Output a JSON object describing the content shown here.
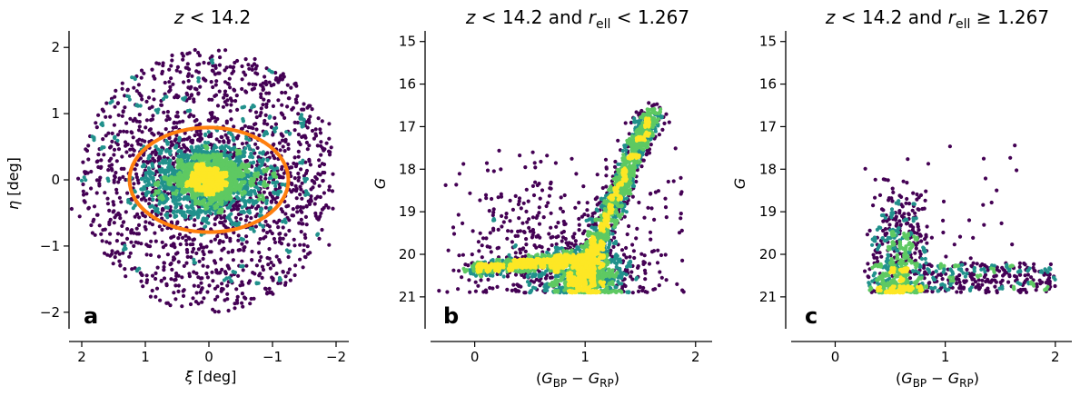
{
  "chart_data": [
    {
      "type": "scatter",
      "id": "a",
      "title": "z < 14.2",
      "panel_label": "a",
      "xlabel": "ξ [deg]",
      "ylabel": "η [deg]",
      "xlim": [
        2.2,
        -2.2
      ],
      "ylim": [
        -2.25,
        2.25
      ],
      "xticks": [
        2,
        1,
        0,
        -1,
        -2
      ],
      "xtick_labels": [
        "2",
        "1",
        "0",
        "−1",
        "−2"
      ],
      "yticks": [
        -2,
        -1,
        0,
        1,
        2
      ],
      "ytick_labels": [
        "−2",
        "−1",
        "0",
        "1",
        "2"
      ],
      "point_color": "#440154",
      "density_colors": [
        "#3b528b",
        "#21918c",
        "#5ec962",
        "#fde725"
      ],
      "uniform_disk": {
        "radius": 2.0,
        "n": 1500
      },
      "clusters": [
        {
          "cx": 0.0,
          "cy": 0.0,
          "sx": 0.6,
          "sy": 0.32,
          "n": 1500
        },
        {
          "cx": 0.0,
          "cy": 0.0,
          "sx": 0.25,
          "sy": 0.15,
          "n": 900
        }
      ],
      "ellipse": {
        "cx": 0.0,
        "cy": 0.0,
        "a": 1.25,
        "b": 0.79,
        "color": "#ff7f0e"
      }
    },
    {
      "type": "scatter",
      "id": "b",
      "title": "z < 14.2 and r_ell < 1.267",
      "panel_label": "b",
      "xlabel": "(G_BP − G_RP)",
      "ylabel": "G",
      "xlim": [
        -0.4,
        2.15
      ],
      "ylim": [
        21.75,
        14.75
      ],
      "xticks": [
        0,
        1,
        2
      ],
      "xtick_labels": [
        "0",
        "1",
        "2"
      ],
      "yticks": [
        15,
        16,
        17,
        18,
        19,
        20,
        21
      ],
      "ytick_labels": [
        "15",
        "16",
        "17",
        "18",
        "19",
        "20",
        "21"
      ],
      "point_color": "#440154",
      "density_colors": [
        "#3b528b",
        "#21918c",
        "#5ec962",
        "#fde725"
      ],
      "mag_cut": 20.9,
      "features": [
        {
          "kind": "line",
          "x0": 0.92,
          "y0": 20.85,
          "x1": 1.62,
          "y1": 16.6,
          "sx": 0.06,
          "n": 1400
        },
        {
          "kind": "line",
          "x0": -0.05,
          "y0": 20.35,
          "x1": 0.9,
          "y1": 20.1,
          "sx": 0.05,
          "n": 700
        },
        {
          "kind": "blob",
          "cx": 1.0,
          "cy": 20.5,
          "sx": 0.22,
          "sy": 0.35,
          "n": 900
        },
        {
          "kind": "blob",
          "cx": 0.7,
          "cy": 19.8,
          "sx": 0.4,
          "sy": 0.8,
          "n": 300
        },
        {
          "kind": "uniform",
          "x0": -0.2,
          "x1": 1.9,
          "y0": 17.5,
          "y1": 20.9,
          "n": 120
        }
      ]
    },
    {
      "type": "scatter",
      "id": "c",
      "title": "z < 14.2 and r_ell ≥ 1.267",
      "panel_label": "c",
      "xlabel": "(G_BP − G_RP)",
      "ylabel": "G",
      "xlim": [
        -0.4,
        2.15
      ],
      "ylim": [
        21.75,
        14.75
      ],
      "xticks": [
        0,
        1,
        2
      ],
      "xtick_labels": [
        "0",
        "1",
        "2"
      ],
      "yticks": [
        15,
        16,
        17,
        18,
        19,
        20,
        21
      ],
      "ytick_labels": [
        "15",
        "16",
        "17",
        "18",
        "19",
        "20",
        "21"
      ],
      "point_color": "#440154",
      "density_colors": [
        "#3b528b",
        "#21918c",
        "#5ec962",
        "#fde725"
      ],
      "mag_cut": 20.9,
      "features": [
        {
          "kind": "blob",
          "cx": 0.6,
          "cy": 20.0,
          "sx": 0.13,
          "sy": 0.8,
          "n": 520
        },
        {
          "kind": "uniform",
          "x0": 0.3,
          "x1": 2.0,
          "y0": 20.2,
          "y1": 20.9,
          "n": 420
        },
        {
          "kind": "blob",
          "cx": 0.65,
          "cy": 20.8,
          "sx": 0.15,
          "sy": 0.05,
          "n": 60
        },
        {
          "kind": "uniform",
          "x0": 0.3,
          "x1": 1.8,
          "y0": 17.4,
          "y1": 20.2,
          "n": 30
        }
      ]
    }
  ]
}
